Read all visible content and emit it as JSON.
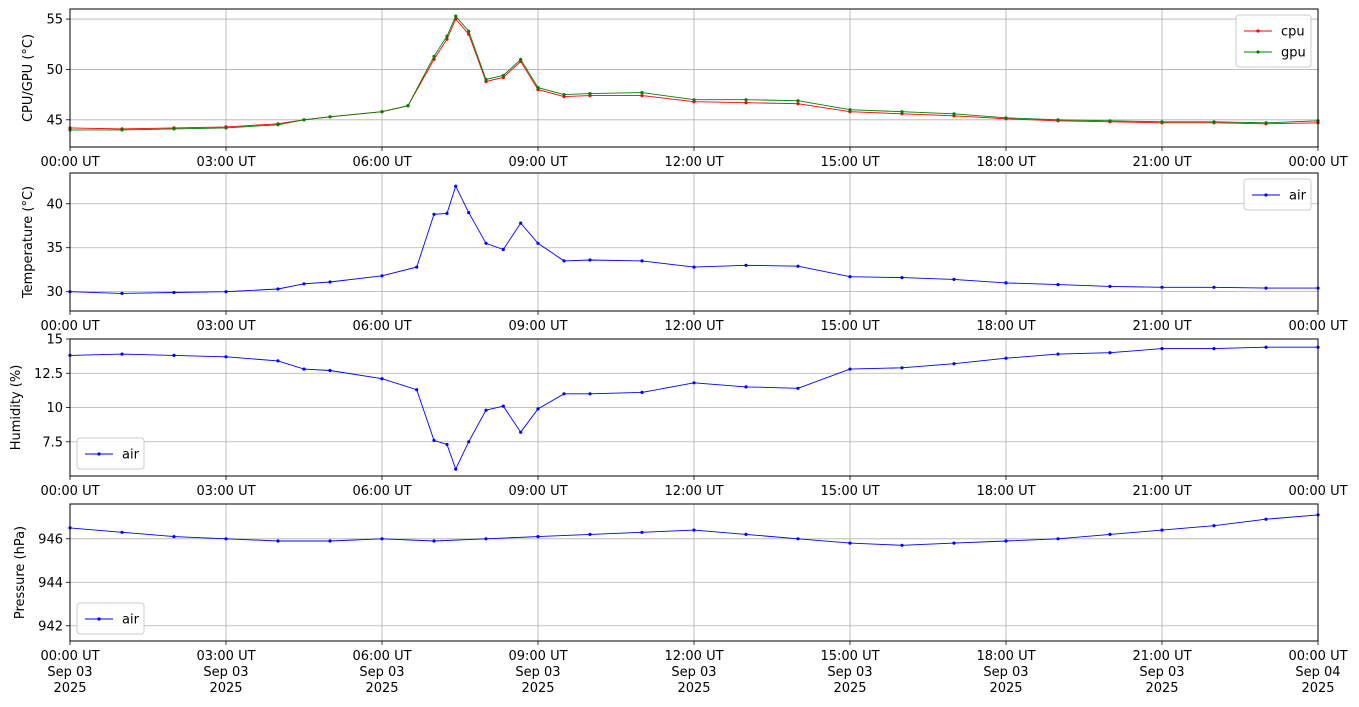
{
  "colors": {
    "cpu": "#ff0000",
    "gpu": "#008000",
    "air": "#0000ff",
    "grid": "#b0b0b0"
  },
  "x_ticks": {
    "times": [
      "00:00 UT",
      "03:00 UT",
      "06:00 UT",
      "09:00 UT",
      "12:00 UT",
      "15:00 UT",
      "18:00 UT",
      "21:00 UT",
      "00:00 UT"
    ],
    "dates": [
      "Sep 03",
      "Sep 03",
      "Sep 03",
      "Sep 03",
      "Sep 03",
      "Sep 03",
      "Sep 03",
      "Sep 03",
      "Sep 04"
    ],
    "years": [
      "2025",
      "2025",
      "2025",
      "2025",
      "2025",
      "2025",
      "2025",
      "2025",
      "2025"
    ]
  },
  "chart_data": [
    {
      "type": "line",
      "ylabel": "CPU/GPU (°C)",
      "xlim": [
        "2025-09-03T00:00",
        "2025-09-04T00:00"
      ],
      "ylim": [
        42.3,
        56
      ],
      "yticks": [
        45,
        50,
        55
      ],
      "grid": true,
      "legend": "upper right",
      "x": [
        "2025-09-03T00:00",
        "2025-09-03T01:00",
        "2025-09-03T02:00",
        "2025-09-03T03:00",
        "2025-09-03T04:00",
        "2025-09-03T04:30",
        "2025-09-03T05:00",
        "2025-09-03T06:00",
        "2025-09-03T06:30",
        "2025-09-03T07:00",
        "2025-09-03T07:15",
        "2025-09-03T07:25",
        "2025-09-03T07:40",
        "2025-09-03T08:00",
        "2025-09-03T08:20",
        "2025-09-03T08:40",
        "2025-09-03T09:00",
        "2025-09-03T09:30",
        "2025-09-03T10:00",
        "2025-09-03T11:00",
        "2025-09-03T12:00",
        "2025-09-03T13:00",
        "2025-09-03T14:00",
        "2025-09-03T15:00",
        "2025-09-03T16:00",
        "2025-09-03T17:00",
        "2025-09-03T18:00",
        "2025-09-03T19:00",
        "2025-09-03T20:00",
        "2025-09-03T21:00",
        "2025-09-03T22:00",
        "2025-09-03T23:00",
        "2025-09-04T00:00"
      ],
      "series": [
        {
          "name": "cpu",
          "values": [
            44.2,
            44.1,
            44.2,
            44.3,
            44.6,
            45.0,
            45.3,
            45.8,
            46.4,
            51.0,
            53.0,
            55.0,
            53.5,
            48.8,
            49.2,
            50.8,
            48.0,
            47.3,
            47.4,
            47.4,
            46.8,
            46.7,
            46.6,
            45.8,
            45.6,
            45.4,
            45.1,
            44.9,
            44.8,
            44.7,
            44.7,
            44.6,
            44.7
          ]
        },
        {
          "name": "gpu",
          "values": [
            44.0,
            44.0,
            44.1,
            44.2,
            44.5,
            45.0,
            45.3,
            45.8,
            46.4,
            51.3,
            53.3,
            55.3,
            53.8,
            49.0,
            49.4,
            51.0,
            48.2,
            47.5,
            47.6,
            47.7,
            47.0,
            47.0,
            46.9,
            46.0,
            45.8,
            45.6,
            45.2,
            45.0,
            44.9,
            44.8,
            44.8,
            44.7,
            44.9
          ]
        }
      ]
    },
    {
      "type": "line",
      "ylabel": "Temperature (°C)",
      "xlim": [
        "2025-09-03T00:00",
        "2025-09-04T00:00"
      ],
      "ylim": [
        27.8,
        43.5
      ],
      "yticks": [
        30,
        35,
        40
      ],
      "grid": true,
      "legend": "upper right",
      "x": [
        "2025-09-03T00:00",
        "2025-09-03T01:00",
        "2025-09-03T02:00",
        "2025-09-03T03:00",
        "2025-09-03T04:00",
        "2025-09-03T04:30",
        "2025-09-03T05:00",
        "2025-09-03T06:00",
        "2025-09-03T06:40",
        "2025-09-03T07:00",
        "2025-09-03T07:15",
        "2025-09-03T07:25",
        "2025-09-03T07:40",
        "2025-09-03T08:00",
        "2025-09-03T08:20",
        "2025-09-03T08:40",
        "2025-09-03T09:00",
        "2025-09-03T09:30",
        "2025-09-03T10:00",
        "2025-09-03T11:00",
        "2025-09-03T12:00",
        "2025-09-03T13:00",
        "2025-09-03T14:00",
        "2025-09-03T15:00",
        "2025-09-03T16:00",
        "2025-09-03T17:00",
        "2025-09-03T18:00",
        "2025-09-03T19:00",
        "2025-09-03T20:00",
        "2025-09-03T21:00",
        "2025-09-03T22:00",
        "2025-09-03T23:00",
        "2025-09-04T00:00"
      ],
      "series": [
        {
          "name": "air",
          "values": [
            30.0,
            29.8,
            29.9,
            30.0,
            30.3,
            30.9,
            31.1,
            31.8,
            32.8,
            38.8,
            38.9,
            42.0,
            39.0,
            35.5,
            34.8,
            37.8,
            35.5,
            33.5,
            33.6,
            33.5,
            32.8,
            33.0,
            32.9,
            31.7,
            31.6,
            31.4,
            31.0,
            30.8,
            30.6,
            30.5,
            30.5,
            30.4,
            30.4
          ]
        }
      ]
    },
    {
      "type": "line",
      "ylabel": "Humidity (%)",
      "xlim": [
        "2025-09-03T00:00",
        "2025-09-04T00:00"
      ],
      "ylim": [
        5,
        15
      ],
      "yticks": [
        7.5,
        10.0,
        12.5,
        15.0
      ],
      "grid": true,
      "legend": "lower left",
      "x": [
        "2025-09-03T00:00",
        "2025-09-03T01:00",
        "2025-09-03T02:00",
        "2025-09-03T03:00",
        "2025-09-03T04:00",
        "2025-09-03T04:30",
        "2025-09-03T05:00",
        "2025-09-03T06:00",
        "2025-09-03T06:40",
        "2025-09-03T07:00",
        "2025-09-03T07:15",
        "2025-09-03T07:25",
        "2025-09-03T07:40",
        "2025-09-03T08:00",
        "2025-09-03T08:20",
        "2025-09-03T08:40",
        "2025-09-03T09:00",
        "2025-09-03T09:30",
        "2025-09-03T10:00",
        "2025-09-03T11:00",
        "2025-09-03T12:00",
        "2025-09-03T13:00",
        "2025-09-03T14:00",
        "2025-09-03T15:00",
        "2025-09-03T16:00",
        "2025-09-03T17:00",
        "2025-09-03T18:00",
        "2025-09-03T19:00",
        "2025-09-03T20:00",
        "2025-09-03T21:00",
        "2025-09-03T22:00",
        "2025-09-03T23:00",
        "2025-09-04T00:00"
      ],
      "series": [
        {
          "name": "air",
          "values": [
            13.8,
            13.9,
            13.8,
            13.7,
            13.4,
            12.8,
            12.7,
            12.1,
            11.3,
            7.6,
            7.3,
            5.5,
            7.5,
            9.8,
            10.1,
            8.2,
            9.9,
            11.0,
            11.0,
            11.1,
            11.8,
            11.5,
            11.4,
            12.8,
            12.9,
            13.2,
            13.6,
            13.9,
            14.0,
            14.3,
            14.3,
            14.4,
            14.4
          ]
        }
      ]
    },
    {
      "type": "line",
      "ylabel": "Pressure (hPa)",
      "xlim": [
        "2025-09-03T00:00",
        "2025-09-04T00:00"
      ],
      "ylim": [
        941.3,
        947.6
      ],
      "yticks": [
        942,
        944,
        946
      ],
      "grid": true,
      "legend": "lower left",
      "x": [
        "2025-09-03T00:00",
        "2025-09-03T01:00",
        "2025-09-03T02:00",
        "2025-09-03T03:00",
        "2025-09-03T04:00",
        "2025-09-03T05:00",
        "2025-09-03T06:00",
        "2025-09-03T07:00",
        "2025-09-03T08:00",
        "2025-09-03T09:00",
        "2025-09-03T10:00",
        "2025-09-03T11:00",
        "2025-09-03T12:00",
        "2025-09-03T13:00",
        "2025-09-03T14:00",
        "2025-09-03T15:00",
        "2025-09-03T16:00",
        "2025-09-03T17:00",
        "2025-09-03T18:00",
        "2025-09-03T19:00",
        "2025-09-03T20:00",
        "2025-09-03T21:00",
        "2025-09-03T22:00",
        "2025-09-03T23:00",
        "2025-09-04T00:00"
      ],
      "series": [
        {
          "name": "air",
          "values": [
            946.5,
            946.3,
            946.1,
            946.0,
            945.9,
            945.9,
            946.0,
            945.9,
            946.0,
            946.1,
            946.2,
            946.3,
            946.4,
            946.2,
            946.0,
            945.8,
            945.7,
            945.8,
            945.9,
            946.0,
            946.2,
            946.4,
            946.6,
            946.9,
            947.1
          ]
        }
      ]
    }
  ]
}
